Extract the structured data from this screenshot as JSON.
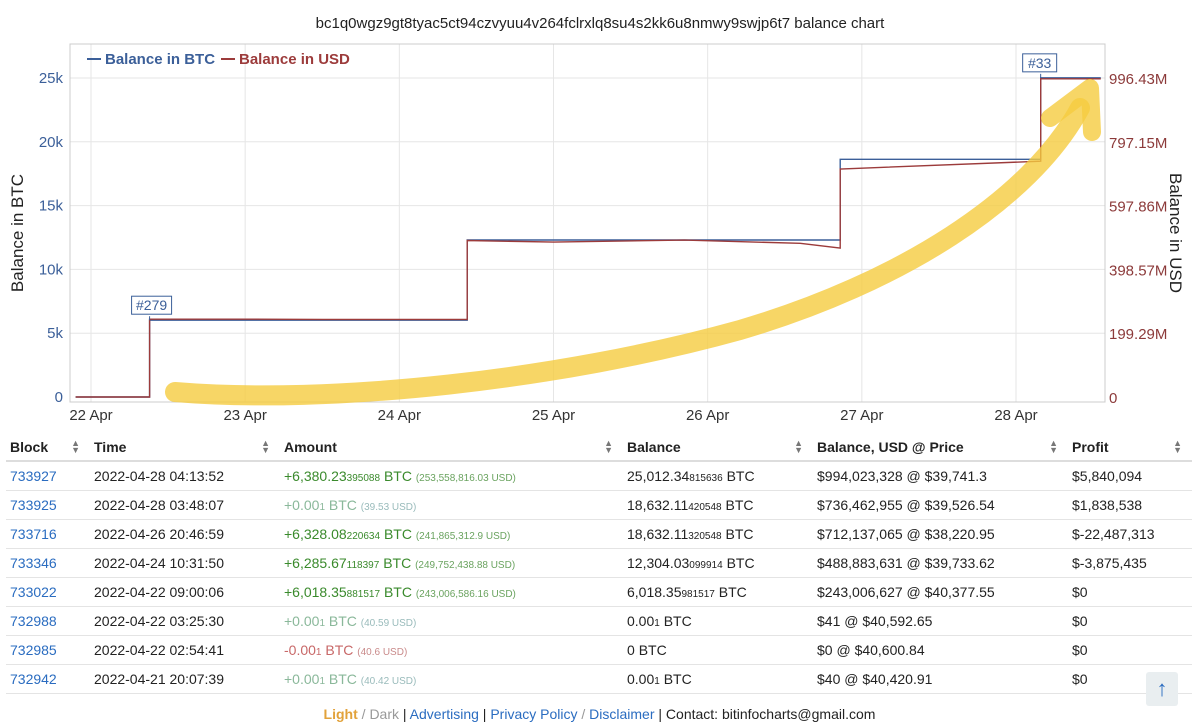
{
  "chart_data": {
    "type": "line",
    "title": "bc1q0wgz9gt8tyac5ct94czvyuu4v264fclrxlq8su4s2kk6u8nmwy9swjp6t7 balance chart",
    "ylabel": "Balance in BTC",
    "y2label": "Balance in USD",
    "ylim": [
      0,
      26000
    ],
    "y2lim": [
      0,
      1036000000
    ],
    "y_ticks": [
      "0",
      "5k",
      "10k",
      "15k",
      "20k",
      "25k"
    ],
    "y_tick_values": [
      0,
      5000,
      10000,
      15000,
      20000,
      25000
    ],
    "y2_ticks": [
      "0",
      "199.29M",
      "398.57M",
      "597.86M",
      "797.15M",
      "996.43M"
    ],
    "y2_tick_values": [
      0,
      199290000,
      398570000,
      597860000,
      797150000,
      996430000
    ],
    "x_ticks": [
      "22 Apr",
      "23 Apr",
      "24 Apr",
      "25 Apr",
      "26 Apr",
      "27 Apr",
      "28 Apr"
    ],
    "x_tick_values": [
      22,
      23,
      24,
      25,
      26,
      27,
      28
    ],
    "xlim": [
      21.9,
      28.55
    ],
    "legend": {
      "placement": "top-left",
      "items": [
        "Balance in BTC",
        "Balance in USD"
      ]
    },
    "grid": true,
    "series": [
      {
        "name": "Balance in BTC",
        "color": "#3b5f99",
        "x": [
          21.9,
          22.38,
          22.38,
          24.44,
          24.44,
          25.0,
          26.0,
          26.86,
          26.86,
          28.16,
          28.16,
          28.55
        ],
        "y": [
          0,
          0,
          6018.36,
          6018.36,
          12304.03,
          12304.03,
          12304.03,
          12304.03,
          18632.11,
          18632.12,
          25012.35,
          25012.35
        ]
      },
      {
        "name": "Balance in USD",
        "color": "#9c3b3b",
        "x": [
          21.9,
          22.38,
          22.38,
          23.0,
          23.5,
          24.44,
          24.44,
          25.0,
          25.85,
          26.6,
          26.86,
          26.86,
          28.16,
          28.16,
          28.55
        ],
        "y": [
          0,
          0,
          243006627,
          243000000,
          242500000,
          242500000,
          488883631,
          484000000,
          490000000,
          480000000,
          465000000,
          712137065,
          736462955,
          994023328,
          994023328
        ]
      }
    ],
    "flags": [
      {
        "label": "#279",
        "x": 22.38,
        "y": 6018.36
      },
      {
        "label": "#33",
        "x": 28.16,
        "y": 25012.35
      }
    ]
  },
  "table": {
    "headers": [
      "Block",
      "Time",
      "Amount",
      "Balance",
      "Balance, USD @ Price",
      "Profit"
    ],
    "rows": [
      {
        "block": "733927",
        "time": "2022-04-28 04:13:52",
        "amt_main": "+6,380.23",
        "amt_sub": "395088",
        "amt_usd": "(253,558,816.03 USD)",
        "bal_main": "25,012.34",
        "bal_sub": "815636",
        "bal_usd": "$994,023,328 @ $39,741.3",
        "profit": "$5,840,094",
        "kind": "pos"
      },
      {
        "block": "733925",
        "time": "2022-04-28 03:48:07",
        "amt_main": "+0.00",
        "amt_sub": "1",
        "amt_usd": "(39.53 USD)",
        "bal_main": "18,632.11",
        "bal_sub": "420548",
        "bal_usd": "$736,462,955 @ $39,526.54",
        "profit": "$1,838,538",
        "kind": "faint"
      },
      {
        "block": "733716",
        "time": "2022-04-26 20:46:59",
        "amt_main": "+6,328.08",
        "amt_sub": "220634",
        "amt_usd": "(241,865,312.9 USD)",
        "bal_main": "18,632.11",
        "bal_sub": "320548",
        "bal_usd": "$712,137,065 @ $38,220.95",
        "profit": "$-22,487,313",
        "kind": "pos"
      },
      {
        "block": "733346",
        "time": "2022-04-24 10:31:50",
        "amt_main": "+6,285.67",
        "amt_sub": "118397",
        "amt_usd": "(249,752,438.88 USD)",
        "bal_main": "12,304.03",
        "bal_sub": "099914",
        "bal_usd": "$488,883,631 @ $39,733.62",
        "profit": "$-3,875,435",
        "kind": "pos"
      },
      {
        "block": "733022",
        "time": "2022-04-22 09:00:06",
        "amt_main": "+6,018.35",
        "amt_sub": "881517",
        "amt_usd": "(243,006,586.16 USD)",
        "bal_main": "6,018.35",
        "bal_sub": "981517",
        "bal_usd": "$243,006,627 @ $40,377.55",
        "profit": "$0",
        "kind": "pos"
      },
      {
        "block": "732988",
        "time": "2022-04-22 03:25:30",
        "amt_main": "+0.00",
        "amt_sub": "1",
        "amt_usd": "(40.59 USD)",
        "bal_main": "0.00",
        "bal_sub": "1",
        "bal_usd": "$41 @ $40,592.65",
        "profit": "$0",
        "kind": "faint"
      },
      {
        "block": "732985",
        "time": "2022-04-22 02:54:41",
        "amt_main": "-0.00",
        "amt_sub": "1",
        "amt_usd": "(40.6 USD)",
        "bal_main": "0",
        "bal_sub": "",
        "bal_usd": "$0 @ $40,600.84",
        "profit": "$0",
        "kind": "neg"
      },
      {
        "block": "732942",
        "time": "2022-04-21 20:07:39",
        "amt_main": "+0.00",
        "amt_sub": "1",
        "amt_usd": "(40.42 USD)",
        "bal_main": "0.00",
        "bal_sub": "1",
        "bal_usd": "$40 @ $40,420.91",
        "profit": "$0",
        "kind": "faint"
      }
    ],
    "btc_unit": "BTC"
  },
  "footer": {
    "light": "Light",
    "sep1": " / ",
    "dark": "Dark",
    "sep2": " | ",
    "advertising": "Advertising",
    "sep3": " | ",
    "privacy": "Privacy Policy",
    "sep4": " / ",
    "disclaimer": "Disclaimer",
    "sep5": " | ",
    "contact": "Contact: bitinfocharts@gmail.com"
  },
  "scroll_top_icon": "arrow-up-icon",
  "scroll_top_label": "↑"
}
